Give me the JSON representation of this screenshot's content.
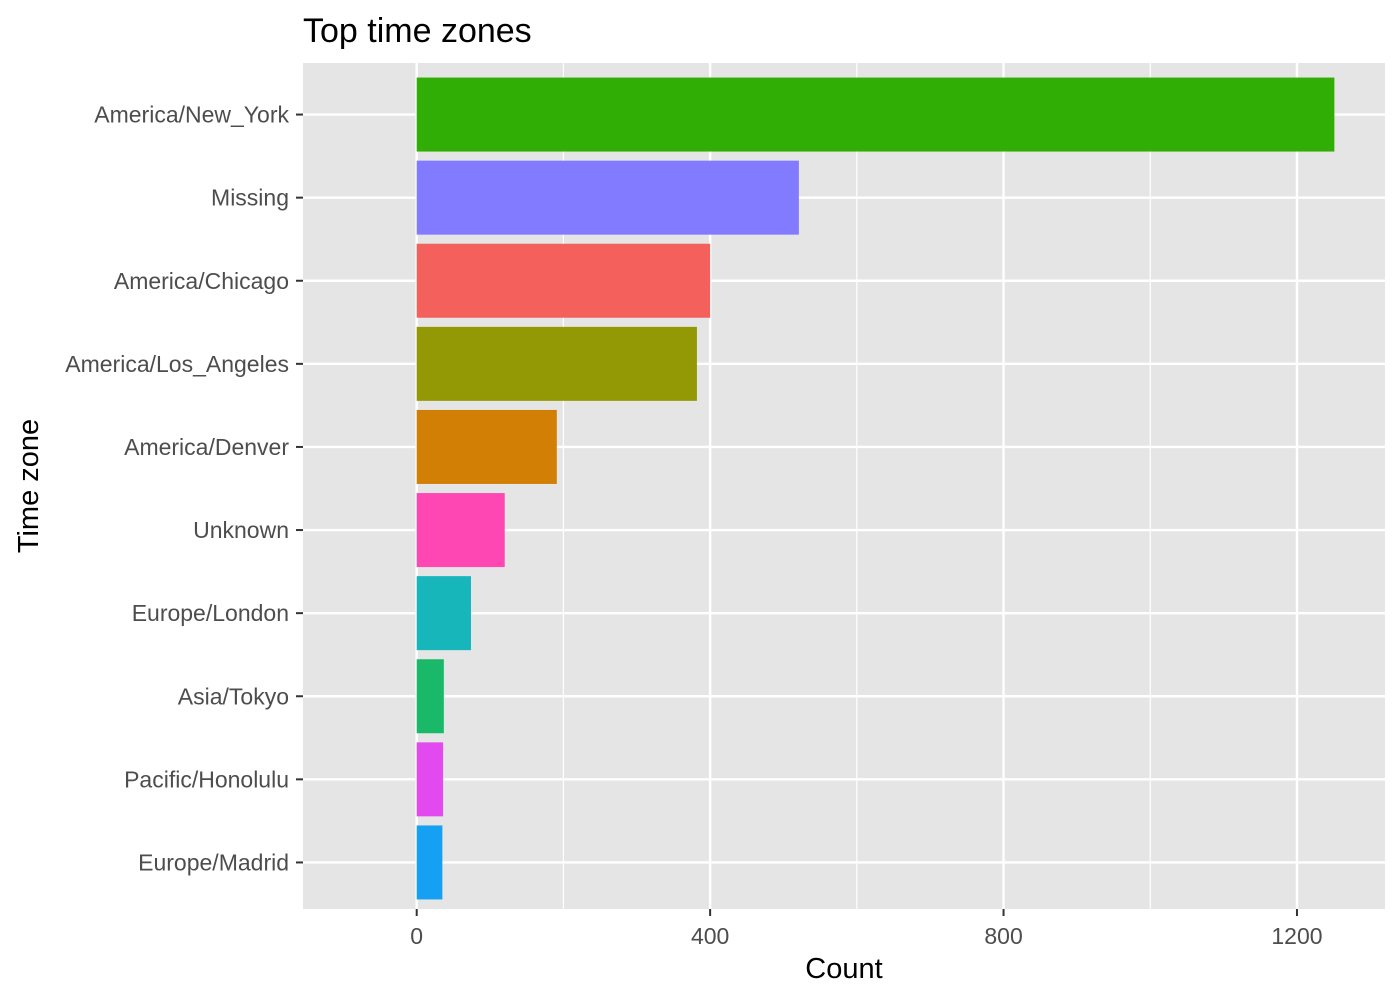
{
  "chart_data": {
    "type": "bar",
    "orientation": "horizontal",
    "title": "Top time zones",
    "xlabel": "Count",
    "ylabel": "Time zone",
    "xlim": [
      -155,
      1320
    ],
    "xticks": [
      0,
      400,
      800,
      1200
    ],
    "xtick_labels": [
      "0",
      "400",
      "800",
      "1200"
    ],
    "x_minor_gridlines": [
      200,
      600,
      1000
    ],
    "grid": true,
    "legend": "none",
    "categories": [
      "America/New_York",
      "Missing",
      "America/Chicago",
      "America/Los_Angeles",
      "America/Denver",
      "Unknown",
      "Europe/London",
      "Asia/Tokyo",
      "Pacific/Honolulu",
      "Europe/Madrid"
    ],
    "values": [
      1251,
      521,
      400,
      382,
      191,
      120,
      74,
      37,
      36,
      35
    ],
    "colors": [
      "#31AE05",
      "#827AFF",
      "#F4615C",
      "#939905",
      "#D27F05",
      "#FF47B4",
      "#17B6BA",
      "#1AB96A",
      "#E24AF0",
      "#16A0F3"
    ],
    "panel_background": "#E5E5E5",
    "grid_color": "#FFFFFF"
  }
}
